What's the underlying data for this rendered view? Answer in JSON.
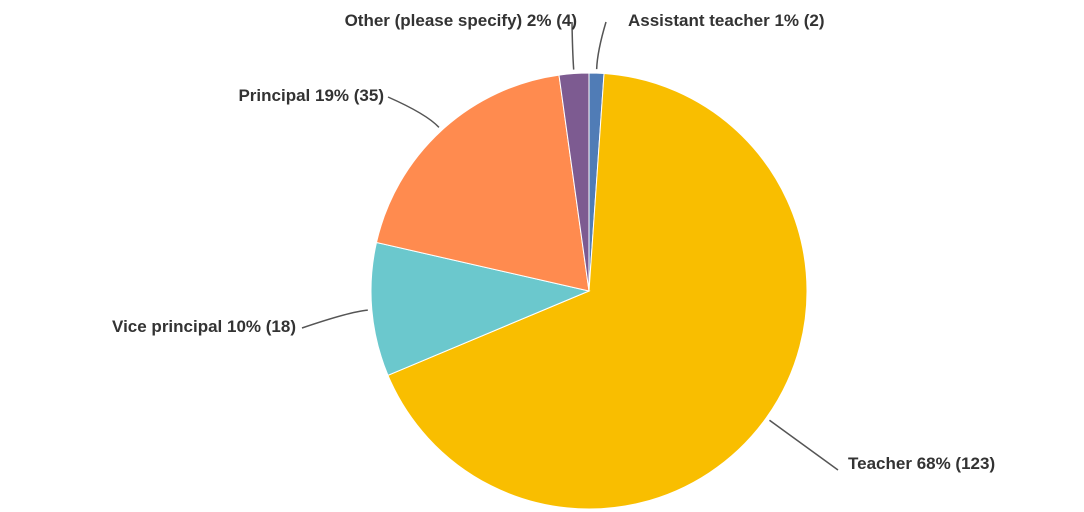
{
  "chart_data": {
    "type": "pie",
    "categories": [
      "Assistant teacher",
      "Teacher",
      "Vice principal",
      "Principal",
      "Other (please specify)"
    ],
    "values": [
      2,
      123,
      18,
      35,
      4
    ],
    "value_labels": [
      "1% (2)",
      "68% (123)",
      "10% (18)",
      "19% (35)",
      "2% (4)"
    ],
    "colors": [
      "#507cb6",
      "#f9be00",
      "#6bc8cd",
      "#ff8b4f",
      "#7d5b91"
    ]
  }
}
